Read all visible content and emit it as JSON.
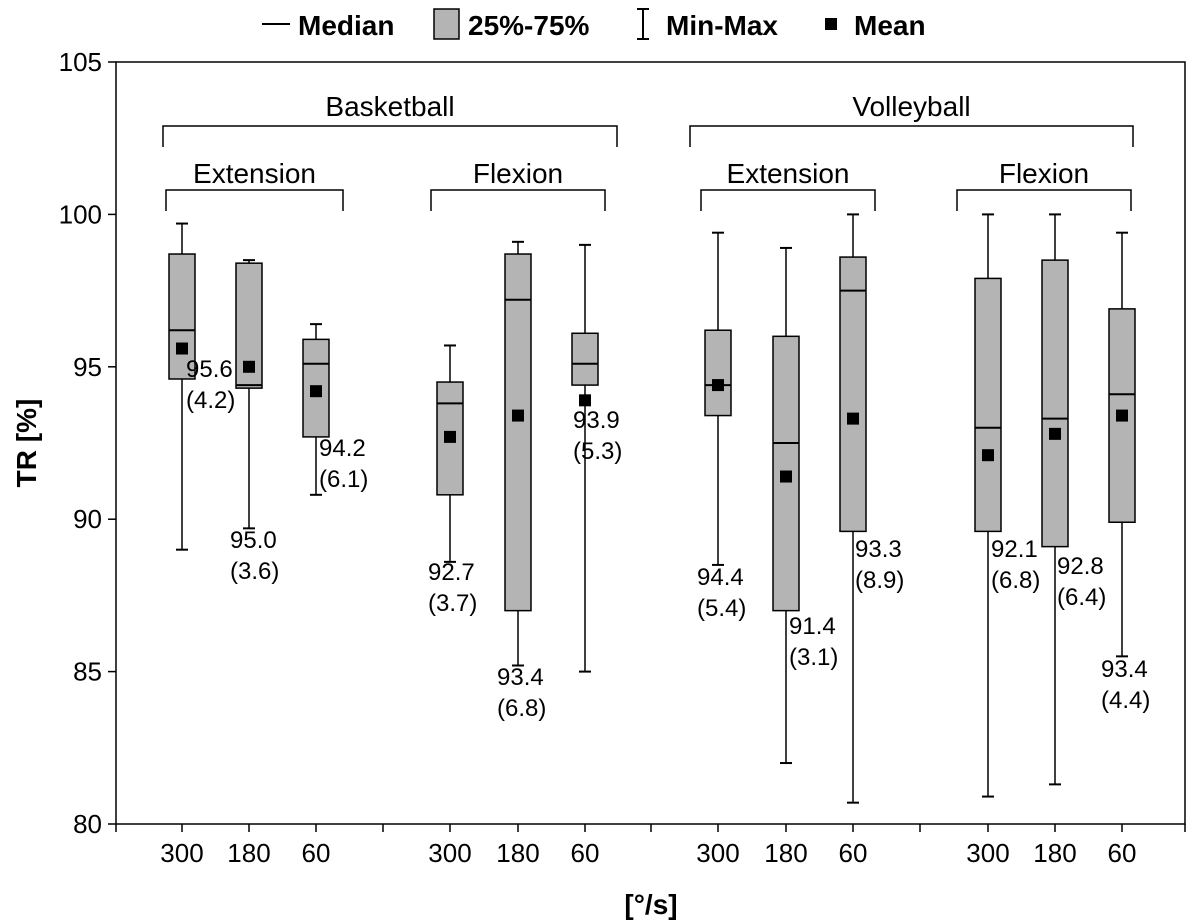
{
  "chart_data": {
    "type": "box",
    "ylabel": "TR [%]",
    "xlabel": "[°/s]",
    "ylim": [
      80,
      105
    ],
    "yticks": [
      80,
      85,
      90,
      95,
      100,
      105
    ],
    "legend": {
      "placement": "top",
      "entries": [
        {
          "symbol": "line",
          "label": "Median"
        },
        {
          "symbol": "box",
          "label": "25%-75%"
        },
        {
          "symbol": "whisker",
          "label": "Min-Max"
        },
        {
          "symbol": "square",
          "label": "Mean"
        }
      ]
    },
    "groups": [
      {
        "label": "Basketball",
        "subgroups": [
          {
            "label": "Extension"
          },
          {
            "label": "Flexion"
          }
        ]
      },
      {
        "label": "Volleyball",
        "subgroups": [
          {
            "label": "Extension"
          },
          {
            "label": "Flexion"
          }
        ]
      }
    ],
    "categories": [
      "300",
      "180",
      "60",
      "300",
      "180",
      "60",
      "300",
      "180",
      "60",
      "300",
      "180",
      "60"
    ],
    "boxes": [
      {
        "min": 89.0,
        "q1": 94.6,
        "median": 96.2,
        "q3": 98.7,
        "max": 99.7,
        "mean": 95.6,
        "label": [
          "95.6",
          "(4.2)"
        ]
      },
      {
        "min": 89.7,
        "q1": 94.3,
        "median": 94.4,
        "q3": 98.4,
        "max": 98.5,
        "mean": 95.0,
        "label": [
          "95.0",
          "(3.6)"
        ]
      },
      {
        "min": 90.8,
        "q1": 92.7,
        "median": 95.1,
        "q3": 95.9,
        "max": 96.4,
        "mean": 94.2,
        "label": [
          "94.2",
          "(6.1)"
        ]
      },
      {
        "min": 88.6,
        "q1": 90.8,
        "median": 93.8,
        "q3": 94.5,
        "max": 95.7,
        "mean": 92.7,
        "label": [
          "92.7",
          "(3.7)"
        ]
      },
      {
        "min": 85.2,
        "q1": 87.0,
        "median": 97.2,
        "q3": 98.7,
        "max": 99.1,
        "mean": 93.4,
        "label": [
          "93.4",
          "(6.8)"
        ]
      },
      {
        "min": 85.0,
        "q1": 94.4,
        "median": 95.1,
        "q3": 96.1,
        "max": 99.0,
        "mean": 93.9,
        "label": [
          "93.9",
          "(5.3)"
        ]
      },
      {
        "min": 88.5,
        "q1": 93.4,
        "median": 94.4,
        "q3": 96.2,
        "max": 99.4,
        "mean": 94.4,
        "label": [
          "94.4",
          "(5.4)"
        ]
      },
      {
        "min": 82.0,
        "q1": 87.0,
        "median": 92.5,
        "q3": 96.0,
        "max": 98.9,
        "mean": 91.4,
        "label": [
          "91.4",
          "(3.1)"
        ]
      },
      {
        "min": 80.7,
        "q1": 89.6,
        "median": 97.5,
        "q3": 98.6,
        "max": 100.0,
        "mean": 93.3,
        "label": [
          "93.3",
          "(8.9)"
        ]
      },
      {
        "min": 80.9,
        "q1": 89.6,
        "median": 93.0,
        "q3": 97.9,
        "max": 100.0,
        "mean": 92.1,
        "label": [
          "92.1",
          "(6.8)"
        ]
      },
      {
        "min": 81.3,
        "q1": 89.1,
        "median": 93.3,
        "q3": 98.5,
        "max": 100.0,
        "mean": 92.8,
        "label": [
          "92.8",
          "(6.4)"
        ]
      },
      {
        "min": 85.5,
        "q1": 89.9,
        "median": 94.1,
        "q3": 96.9,
        "max": 99.4,
        "mean": 93.4,
        "label": [
          "93.4",
          "(4.4)"
        ]
      }
    ],
    "colors": {
      "box_fill": "#b4b4b4",
      "stroke": "#000000",
      "background": "#ffffff"
    }
  }
}
